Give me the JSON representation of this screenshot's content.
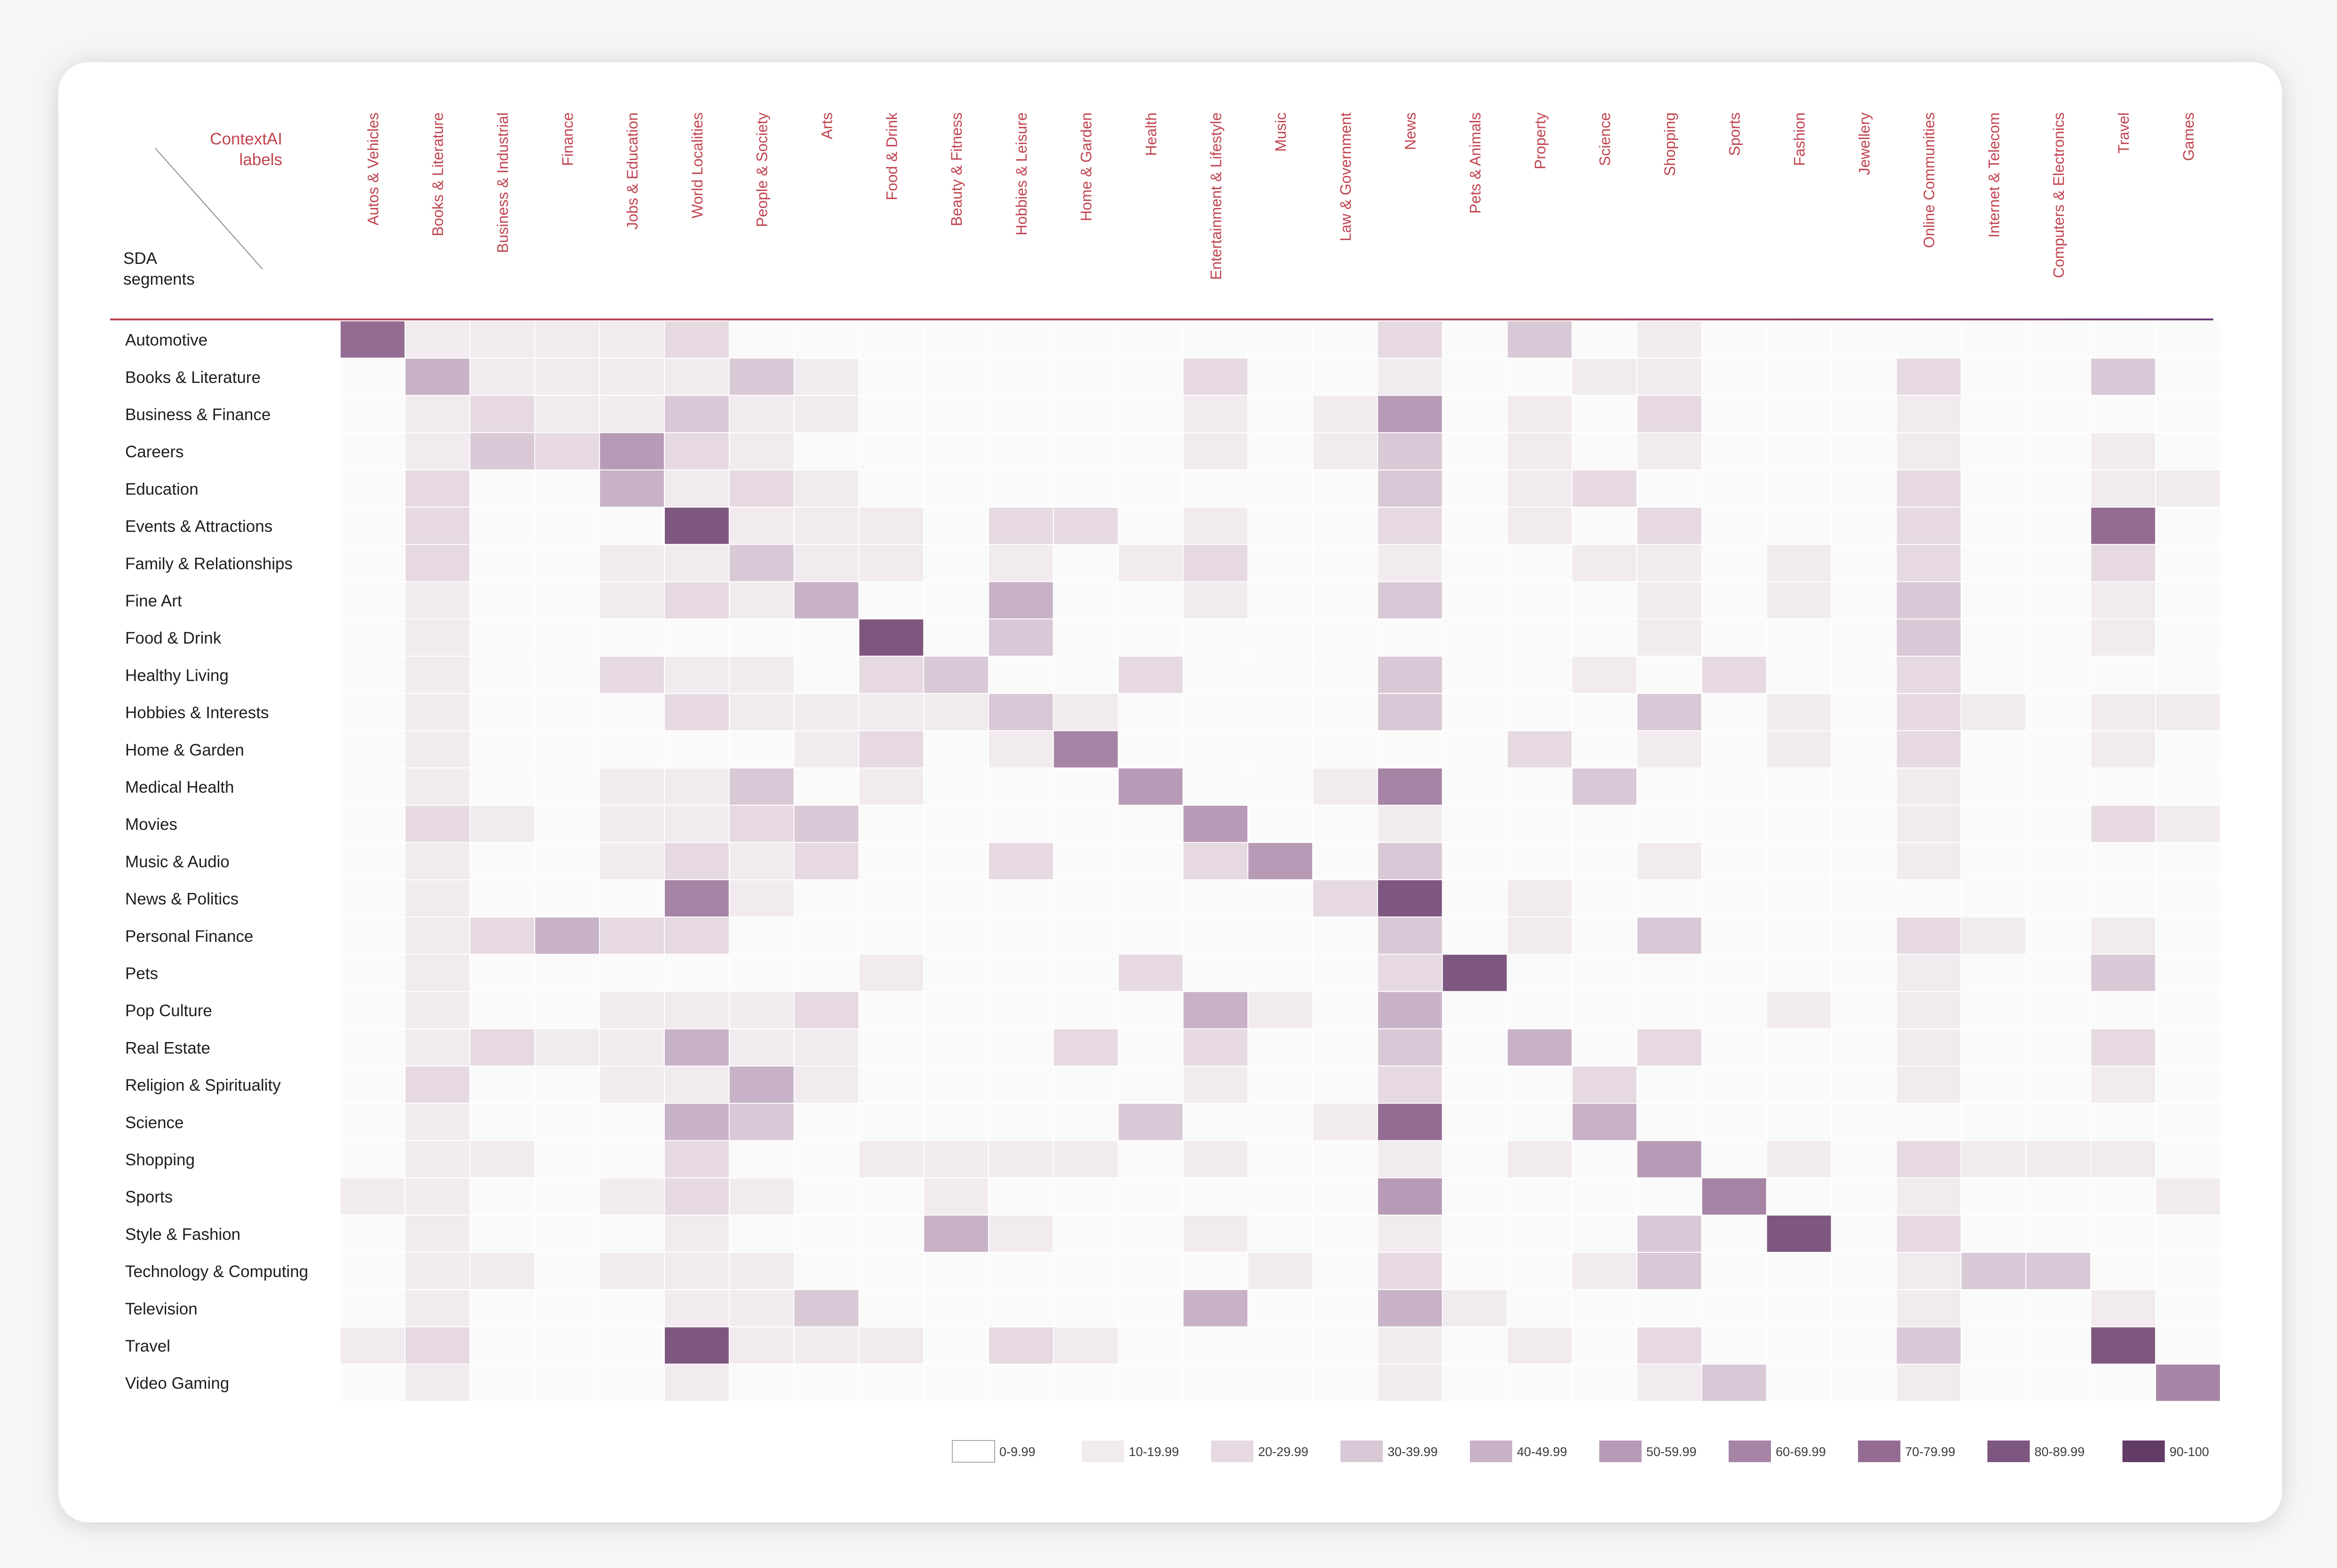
{
  "corner": {
    "top_lines": [
      "ContextAI",
      "labels"
    ],
    "bottom_lines": [
      "SDA",
      "segments"
    ]
  },
  "chart_data": {
    "type": "heatmap",
    "columns": [
      "Autos & Vehicles",
      "Books & Literature",
      "Business & Industrial",
      "Finance",
      "Jobs & Education",
      "World Localities",
      "People & Society",
      "Arts",
      "Food & Drink",
      "Beauty & Fitness",
      "Hobbies & Leisure",
      "Home & Garden",
      "Health",
      "Entertainment & Lifestyle",
      "Music",
      "Law & Government",
      "News",
      "Pets & Animals",
      "Property",
      "Science",
      "Shopping",
      "Sports",
      "Fashion",
      "Jewellery",
      "Online Communities",
      "Internet & Telecom",
      "Computers & Electronics",
      "Travel",
      "Games"
    ],
    "rows": [
      "Automotive",
      "Books & Literature",
      "Business & Finance",
      "Careers",
      "Education",
      "Events & Attractions",
      "Family & Relationships",
      "Fine Art",
      "Food & Drink",
      "Healthy Living",
      "Hobbies & Interests",
      "Home & Garden",
      "Medical Health",
      "Movies",
      "Music & Audio",
      "News & Politics",
      "Personal Finance",
      "Pets",
      "Pop Culture",
      "Real Estate",
      "Religion & Spirituality",
      "Science",
      "Shopping",
      "Sports",
      "Style & Fashion",
      "Technology & Computing",
      "Television",
      "Travel",
      "Video Gaming"
    ],
    "values": [
      [
        75,
        15,
        12,
        12,
        12,
        25,
        5,
        5,
        5,
        5,
        5,
        5,
        5,
        5,
        5,
        5,
        22,
        5,
        35,
        5,
        15,
        5,
        5,
        5,
        5,
        5,
        5,
        5,
        5
      ],
      [
        5,
        45,
        15,
        12,
        12,
        12,
        32,
        15,
        5,
        5,
        5,
        5,
        5,
        22,
        5,
        5,
        15,
        5,
        5,
        12,
        15,
        5,
        5,
        5,
        22,
        5,
        5,
        35,
        5
      ],
      [
        5,
        15,
        22,
        15,
        15,
        35,
        15,
        12,
        5,
        5,
        5,
        5,
        5,
        15,
        5,
        15,
        55,
        5,
        15,
        5,
        22,
        5,
        5,
        5,
        15,
        5,
        5,
        5,
        5
      ],
      [
        5,
        15,
        35,
        22,
        55,
        22,
        15,
        5,
        5,
        5,
        5,
        5,
        5,
        15,
        5,
        15,
        35,
        5,
        15,
        5,
        15,
        5,
        5,
        5,
        15,
        5,
        5,
        15,
        5
      ],
      [
        5,
        22,
        5,
        5,
        45,
        15,
        22,
        15,
        5,
        5,
        5,
        5,
        5,
        5,
        5,
        5,
        35,
        5,
        15,
        22,
        5,
        5,
        5,
        5,
        22,
        5,
        5,
        15,
        15
      ],
      [
        5,
        25,
        5,
        5,
        5,
        80,
        15,
        15,
        15,
        5,
        22,
        22,
        5,
        15,
        5,
        5,
        22,
        5,
        15,
        5,
        25,
        5,
        5,
        5,
        25,
        5,
        5,
        70,
        5
      ],
      [
        5,
        22,
        5,
        5,
        15,
        15,
        35,
        15,
        15,
        5,
        15,
        5,
        15,
        25,
        5,
        5,
        15,
        5,
        5,
        15,
        15,
        5,
        15,
        5,
        25,
        5,
        5,
        25,
        5
      ],
      [
        5,
        15,
        5,
        5,
        15,
        22,
        15,
        45,
        5,
        5,
        45,
        5,
        5,
        15,
        5,
        5,
        35,
        5,
        5,
        5,
        15,
        5,
        15,
        5,
        35,
        5,
        5,
        15,
        5
      ],
      [
        5,
        15,
        5,
        5,
        5,
        5,
        5,
        5,
        85,
        5,
        35,
        5,
        5,
        5,
        5,
        5,
        5,
        5,
        5,
        5,
        15,
        5,
        5,
        5,
        35,
        5,
        5,
        15,
        5
      ],
      [
        5,
        15,
        5,
        5,
        22,
        15,
        15,
        5,
        22,
        35,
        5,
        5,
        25,
        5,
        5,
        5,
        35,
        5,
        5,
        15,
        5,
        22,
        5,
        5,
        22,
        5,
        5,
        5,
        5
      ],
      [
        5,
        15,
        5,
        5,
        5,
        22,
        15,
        15,
        15,
        15,
        35,
        15,
        5,
        5,
        5,
        5,
        35,
        5,
        5,
        5,
        35,
        5,
        15,
        5,
        22,
        15,
        5,
        15,
        15
      ],
      [
        5,
        15,
        5,
        5,
        5,
        5,
        5,
        15,
        25,
        5,
        15,
        60,
        5,
        5,
        5,
        5,
        5,
        5,
        22,
        5,
        15,
        5,
        15,
        5,
        25,
        5,
        5,
        15,
        5
      ],
      [
        5,
        15,
        5,
        5,
        15,
        15,
        35,
        5,
        15,
        5,
        5,
        5,
        55,
        5,
        5,
        15,
        60,
        5,
        5,
        35,
        5,
        5,
        5,
        5,
        15,
        5,
        5,
        5,
        5
      ],
      [
        5,
        22,
        15,
        5,
        15,
        15,
        25,
        35,
        5,
        5,
        5,
        5,
        5,
        55,
        5,
        5,
        15,
        5,
        5,
        5,
        5,
        5,
        5,
        5,
        15,
        5,
        5,
        25,
        15
      ],
      [
        5,
        15,
        5,
        5,
        15,
        22,
        15,
        25,
        5,
        5,
        22,
        5,
        5,
        22,
        50,
        5,
        35,
        5,
        5,
        5,
        15,
        5,
        5,
        5,
        15,
        5,
        5,
        5,
        5
      ],
      [
        5,
        15,
        5,
        5,
        5,
        60,
        15,
        5,
        5,
        5,
        5,
        5,
        5,
        5,
        5,
        22,
        85,
        5,
        15,
        5,
        5,
        5,
        5,
        5,
        5,
        5,
        5,
        5,
        5
      ],
      [
        5,
        15,
        22,
        45,
        22,
        25,
        5,
        5,
        5,
        5,
        5,
        5,
        5,
        5,
        5,
        5,
        35,
        5,
        15,
        5,
        35,
        5,
        5,
        5,
        25,
        15,
        5,
        15,
        5
      ],
      [
        5,
        15,
        5,
        5,
        5,
        5,
        5,
        5,
        15,
        5,
        5,
        5,
        22,
        5,
        5,
        5,
        25,
        85,
        5,
        5,
        5,
        5,
        5,
        5,
        15,
        5,
        5,
        35,
        5
      ],
      [
        5,
        15,
        5,
        5,
        15,
        15,
        15,
        25,
        5,
        5,
        5,
        5,
        5,
        45,
        15,
        5,
        45,
        5,
        5,
        5,
        5,
        5,
        15,
        5,
        15,
        5,
        5,
        5,
        5
      ],
      [
        5,
        15,
        22,
        15,
        15,
        45,
        15,
        15,
        5,
        5,
        5,
        22,
        5,
        22,
        5,
        5,
        35,
        5,
        45,
        5,
        22,
        5,
        5,
        5,
        15,
        5,
        5,
        25,
        5
      ],
      [
        5,
        22,
        5,
        5,
        15,
        15,
        45,
        15,
        5,
        5,
        5,
        5,
        5,
        15,
        5,
        5,
        25,
        5,
        5,
        22,
        5,
        5,
        5,
        5,
        15,
        5,
        5,
        15,
        5
      ],
      [
        5,
        15,
        5,
        5,
        5,
        45,
        35,
        5,
        5,
        5,
        5,
        5,
        35,
        5,
        5,
        15,
        70,
        5,
        5,
        45,
        5,
        5,
        5,
        5,
        5,
        5,
        5,
        5,
        5
      ],
      [
        5,
        15,
        15,
        5,
        5,
        25,
        5,
        5,
        15,
        15,
        15,
        15,
        5,
        15,
        5,
        5,
        15,
        5,
        15,
        5,
        55,
        5,
        15,
        5,
        25,
        15,
        15,
        15,
        5
      ],
      [
        15,
        15,
        5,
        5,
        15,
        25,
        15,
        5,
        5,
        15,
        5,
        5,
        5,
        5,
        5,
        5,
        55,
        5,
        5,
        5,
        5,
        60,
        5,
        5,
        15,
        5,
        5,
        5,
        15
      ],
      [
        5,
        15,
        5,
        5,
        5,
        15,
        5,
        5,
        5,
        45,
        15,
        5,
        5,
        15,
        5,
        5,
        15,
        5,
        5,
        5,
        35,
        5,
        85,
        5,
        25,
        5,
        5,
        5,
        5
      ],
      [
        5,
        15,
        15,
        5,
        15,
        15,
        15,
        5,
        5,
        5,
        5,
        5,
        5,
        5,
        15,
        5,
        25,
        5,
        5,
        15,
        35,
        5,
        5,
        5,
        15,
        35,
        35,
        5,
        5
      ],
      [
        5,
        15,
        5,
        5,
        5,
        15,
        15,
        35,
        5,
        5,
        5,
        5,
        5,
        45,
        5,
        5,
        45,
        15,
        5,
        5,
        5,
        5,
        5,
        5,
        15,
        5,
        5,
        15,
        5
      ],
      [
        15,
        22,
        5,
        5,
        5,
        80,
        15,
        15,
        15,
        5,
        22,
        15,
        5,
        5,
        5,
        5,
        15,
        5,
        15,
        5,
        22,
        5,
        5,
        5,
        35,
        5,
        5,
        80,
        5
      ],
      [
        5,
        15,
        5,
        5,
        5,
        15,
        5,
        5,
        5,
        5,
        5,
        5,
        5,
        5,
        5,
        5,
        15,
        5,
        5,
        5,
        15,
        35,
        5,
        5,
        15,
        5,
        5,
        5,
        60
      ]
    ],
    "legend": {
      "labels": [
        "0-9.99",
        "10-19.99",
        "20-29.99",
        "30-39.99",
        "40-49.99",
        "50-59.99",
        "60-69.99",
        "70-79.99",
        "80-89.99",
        "90-100"
      ],
      "colors": [
        "#ffffff",
        "#f1ebef",
        "#e6d9e2",
        "#d9c8d6",
        "#c8b2c7",
        "#b79bb6",
        "#a684a5",
        "#946c93",
        "#7e5780",
        "#633c66"
      ]
    },
    "accent_color": "#c0444f"
  }
}
